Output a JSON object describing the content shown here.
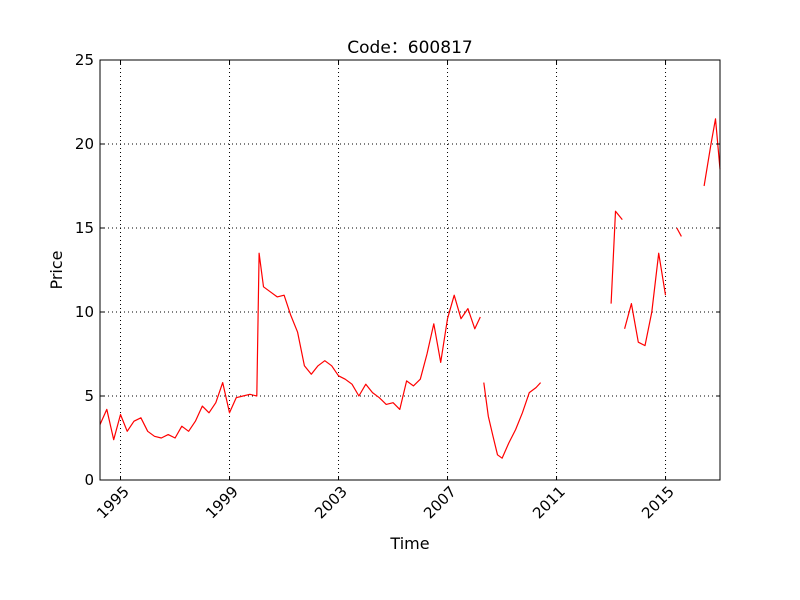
{
  "chart_data": {
    "type": "line",
    "title": "Code：600817",
    "xlabel": "Time",
    "ylabel": "Price",
    "xlim": [
      "1994-04-01",
      "2016-12-31"
    ],
    "ylim": [
      0,
      25
    ],
    "x_ticks": [
      "1995",
      "1999",
      "2003",
      "2007",
      "2011",
      "2015"
    ],
    "y_ticks": [
      "0",
      "5",
      "10",
      "15",
      "20",
      "25"
    ],
    "grid": true,
    "series": [
      {
        "color": "#ff0000",
        "points": [
          [
            "1994-04-01",
            3.3
          ],
          [
            "1994-07-01",
            4.2
          ],
          [
            "1994-10-01",
            2.4
          ],
          [
            "1995-01-01",
            3.9
          ],
          [
            "1995-04-01",
            2.9
          ],
          [
            "1995-07-01",
            3.5
          ],
          [
            "1995-10-01",
            3.7
          ],
          [
            "1996-01-01",
            2.9
          ],
          [
            "1996-04-01",
            2.6
          ],
          [
            "1996-07-01",
            2.5
          ],
          [
            "1996-10-01",
            2.7
          ],
          [
            "1997-01-01",
            2.5
          ],
          [
            "1997-04-01",
            3.2
          ],
          [
            "1997-07-01",
            2.9
          ],
          [
            "1997-10-01",
            3.5
          ],
          [
            "1998-01-01",
            4.4
          ],
          [
            "1998-04-01",
            4.0
          ],
          [
            "1998-07-01",
            4.6
          ],
          [
            "1998-10-01",
            5.8
          ],
          [
            "1999-01-01",
            4.0
          ],
          [
            "1999-04-01",
            4.9
          ],
          [
            "1999-07-01",
            5.0
          ],
          [
            "1999-10-01",
            5.1
          ],
          [
            "2000-01-01",
            5.0
          ],
          [
            "2000-02-01",
            13.5
          ],
          [
            "2000-04-01",
            11.5
          ],
          [
            "2000-07-01",
            11.2
          ],
          [
            "2000-10-01",
            10.9
          ],
          [
            "2001-01-01",
            11.0
          ],
          [
            "2001-04-01",
            9.8
          ],
          [
            "2001-07-01",
            8.8
          ],
          [
            "2001-10-01",
            6.8
          ],
          [
            "2002-01-01",
            6.3
          ],
          [
            "2002-04-01",
            6.8
          ],
          [
            "2002-07-01",
            7.1
          ],
          [
            "2002-10-01",
            6.8
          ],
          [
            "2003-01-01",
            6.2
          ],
          [
            "2003-04-01",
            6.0
          ],
          [
            "2003-07-01",
            5.7
          ],
          [
            "2003-10-01",
            5.0
          ],
          [
            "2004-01-01",
            5.7
          ],
          [
            "2004-04-01",
            5.2
          ],
          [
            "2004-07-01",
            4.9
          ],
          [
            "2004-10-01",
            4.5
          ],
          [
            "2005-01-01",
            4.6
          ],
          [
            "2005-04-01",
            4.2
          ],
          [
            "2005-07-01",
            5.9
          ],
          [
            "2005-10-01",
            5.6
          ],
          [
            "2006-01-01",
            6.0
          ],
          [
            "2006-04-01",
            7.5
          ],
          [
            "2006-07-01",
            9.3
          ],
          [
            "2006-10-01",
            7.0
          ],
          [
            "2007-01-01",
            9.6
          ],
          [
            "2007-04-01",
            11.0
          ],
          [
            "2007-07-01",
            9.6
          ],
          [
            "2007-10-01",
            10.2
          ],
          [
            "2008-01-01",
            9.0
          ],
          [
            "2008-03-15",
            9.7
          ],
          null,
          [
            "2008-05-01",
            5.8
          ],
          [
            "2008-07-01",
            3.8
          ],
          [
            "2008-09-01",
            2.6
          ],
          [
            "2008-11-01",
            1.5
          ],
          [
            "2009-01-01",
            1.3
          ],
          [
            "2009-04-01",
            2.2
          ],
          [
            "2009-07-01",
            3.0
          ],
          [
            "2009-10-01",
            4.0
          ],
          [
            "2010-01-01",
            5.2
          ],
          [
            "2010-04-01",
            5.5
          ],
          [
            "2010-06-01",
            5.8
          ],
          null,
          [
            "2013-01-01",
            10.5
          ],
          [
            "2013-03-01",
            16.0
          ],
          [
            "2013-06-01",
            15.5
          ],
          null,
          [
            "2013-07-01",
            9.0
          ],
          [
            "2013-10-01",
            10.5
          ],
          [
            "2014-01-01",
            8.2
          ],
          [
            "2014-04-01",
            8.0
          ],
          [
            "2014-07-01",
            10.0
          ],
          [
            "2014-10-01",
            13.5
          ],
          [
            "2015-01-01",
            11.0
          ],
          null,
          [
            "2015-06-01",
            15.0
          ],
          [
            "2015-08-01",
            14.5
          ],
          null,
          [
            "2016-06-01",
            17.5
          ],
          [
            "2016-09-01",
            20.0
          ],
          [
            "2016-11-01",
            21.5
          ],
          [
            "2016-12-31",
            18.5
          ]
        ]
      }
    ]
  }
}
